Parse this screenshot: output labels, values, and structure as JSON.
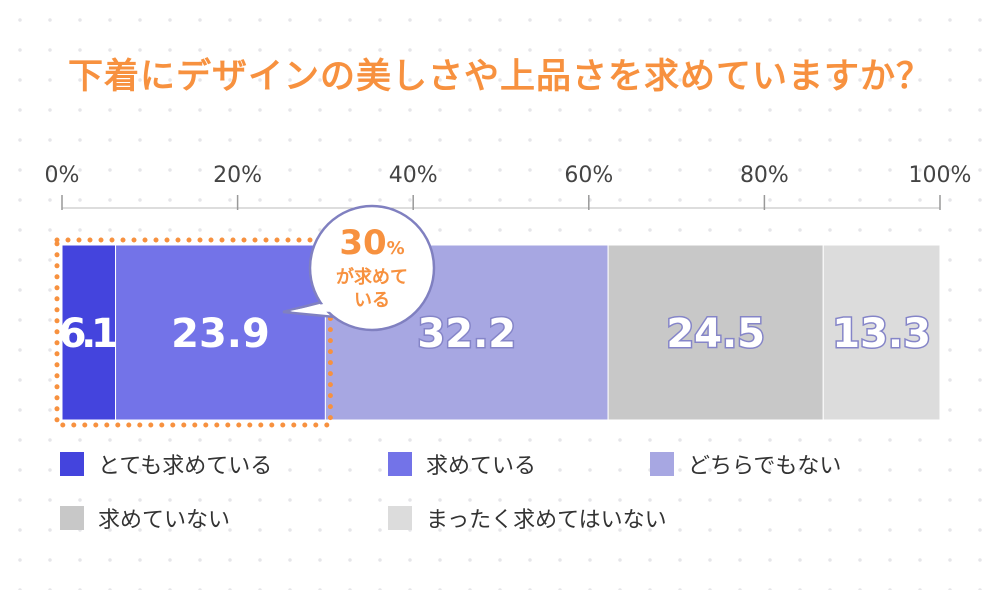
{
  "title": "下着にデザインの美しさや上品さを求めていますか？",
  "chart_data": {
    "type": "bar",
    "orientation": "horizontal-stacked-100",
    "categories": [
      "とても求めている",
      "求めている",
      "どちらでもない",
      "求めていない",
      "まったく求めてはいない"
    ],
    "series": [
      {
        "name": "とても求めている",
        "value": 6.1,
        "color": "#4444dd"
      },
      {
        "name": "求めている",
        "value": 23.9,
        "color": "#7373e8"
      },
      {
        "name": "どちらでもない",
        "value": 32.2,
        "color": "#a7a7e2"
      },
      {
        "name": "求めていない",
        "value": 24.5,
        "color": "#c8c8c8"
      },
      {
        "name": "まったく求めてはいない",
        "value": 13.3,
        "color": "#dcdcdc"
      }
    ],
    "data_labels": [
      "6.1",
      "23.9",
      "32.2",
      "24.5",
      "13.3"
    ],
    "xlim": [
      0,
      100
    ],
    "ticks": [
      "0%",
      "20%",
      "40%",
      "60%",
      "80%",
      "100%"
    ],
    "legend_placement": "bottom",
    "annotation": {
      "value": "30",
      "unit": "%",
      "line1": "が求めて",
      "line2": "いる"
    },
    "accent_color": "#f7913f"
  }
}
